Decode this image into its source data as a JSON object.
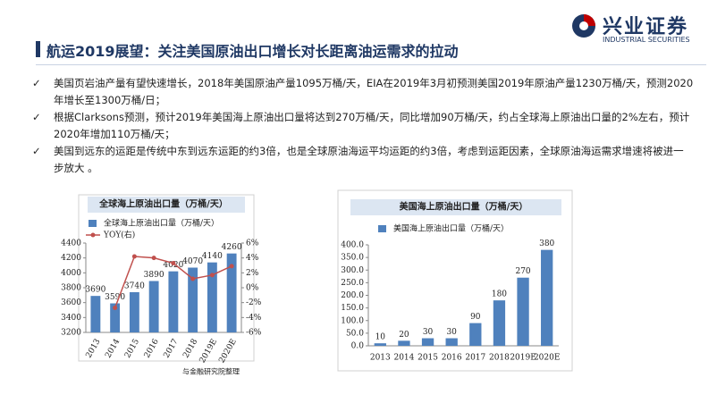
{
  "header": {
    "title": "航运2019展望：关注美国原油出口增长对长距离油运需求的拉动"
  },
  "logo": {
    "name": "兴业证券",
    "english": "INDUSTRIAL SECURITIES"
  },
  "bullets": [
    "美国页岩油产量有望快速增长，2018年美国原油产量1095万桶/天，EIA在2019年3月初预测美国2019年原油产量1230万桶/天，预测2020年增长至1300万桶/日；",
    "根据Clarksons预测，预计2019年美国海上原油出口量将达到270万桶/天，同比增加90万桶/天，约占全球海上原油出口量的2%左右，预计2020年增加110万桶/天；",
    " 美国到远东的运距是传统中东到远东运距的约3倍，也是全球原油海运平均运距的约3倍，考虑到运距因素，全球原油海运需求增速将被进一步放大 。"
  ],
  "chart_data": [
    {
      "type": "bar",
      "title": "全球海上原油出口量（万桶/天）",
      "categories": [
        "2013",
        "2014",
        "2015",
        "2016",
        "2017",
        "2018",
        "2019E",
        "2020E"
      ],
      "series": [
        {
          "name": "全球海上原油出口量（万桶/天）",
          "color": "#4f81bd",
          "values": [
            3690,
            3590,
            3740,
            3890,
            4020,
            4070,
            4140,
            4260
          ]
        },
        {
          "name": "YOY(右)",
          "type": "line",
          "axis": "y2",
          "color": "#c0504d",
          "values": [
            null,
            -2.7,
            4.2,
            4.0,
            3.3,
            1.2,
            1.7,
            2.9
          ]
        }
      ],
      "ylim": [
        3200,
        4400
      ],
      "yticks": [
        3200,
        3400,
        3600,
        3800,
        4000,
        4200,
        4400
      ],
      "y2lim": [
        -6,
        6
      ],
      "y2ticks": [
        {
          "value": -6,
          "label": "-6%"
        },
        {
          "value": -4,
          "label": "-4%"
        },
        {
          "value": -2,
          "label": "-2%"
        },
        {
          "value": 0,
          "label": "0%"
        },
        {
          "value": 2,
          "label": "2%"
        },
        {
          "value": 4,
          "label": "4%"
        },
        {
          "value": 6,
          "label": "6%"
        }
      ],
      "source": "与金融研究院整理"
    },
    {
      "type": "bar",
      "title": "美国海上原油出口量（万桶/天）",
      "categories": [
        "2013",
        "2014",
        "2015",
        "2016",
        "2017",
        "2018",
        "2019E",
        "2020E"
      ],
      "series": [
        {
          "name": "美国海上原油出口量（万桶/天）",
          "color": "#4f81bd",
          "values": [
            10,
            20,
            30,
            30,
            90,
            180,
            270,
            380
          ]
        }
      ],
      "ylim": [
        0,
        400
      ],
      "yticks": [
        {
          "value": 0,
          "label": "0.0"
        },
        {
          "value": 50,
          "label": "50.0"
        },
        {
          "value": 100,
          "label": "100.0"
        },
        {
          "value": 150,
          "label": "150.0"
        },
        {
          "value": 200,
          "label": "200.0"
        },
        {
          "value": 250,
          "label": "250.0"
        },
        {
          "value": 300,
          "label": "300.0"
        },
        {
          "value": 350,
          "label": "350.0"
        },
        {
          "value": 400,
          "label": "400.0"
        }
      ]
    }
  ]
}
